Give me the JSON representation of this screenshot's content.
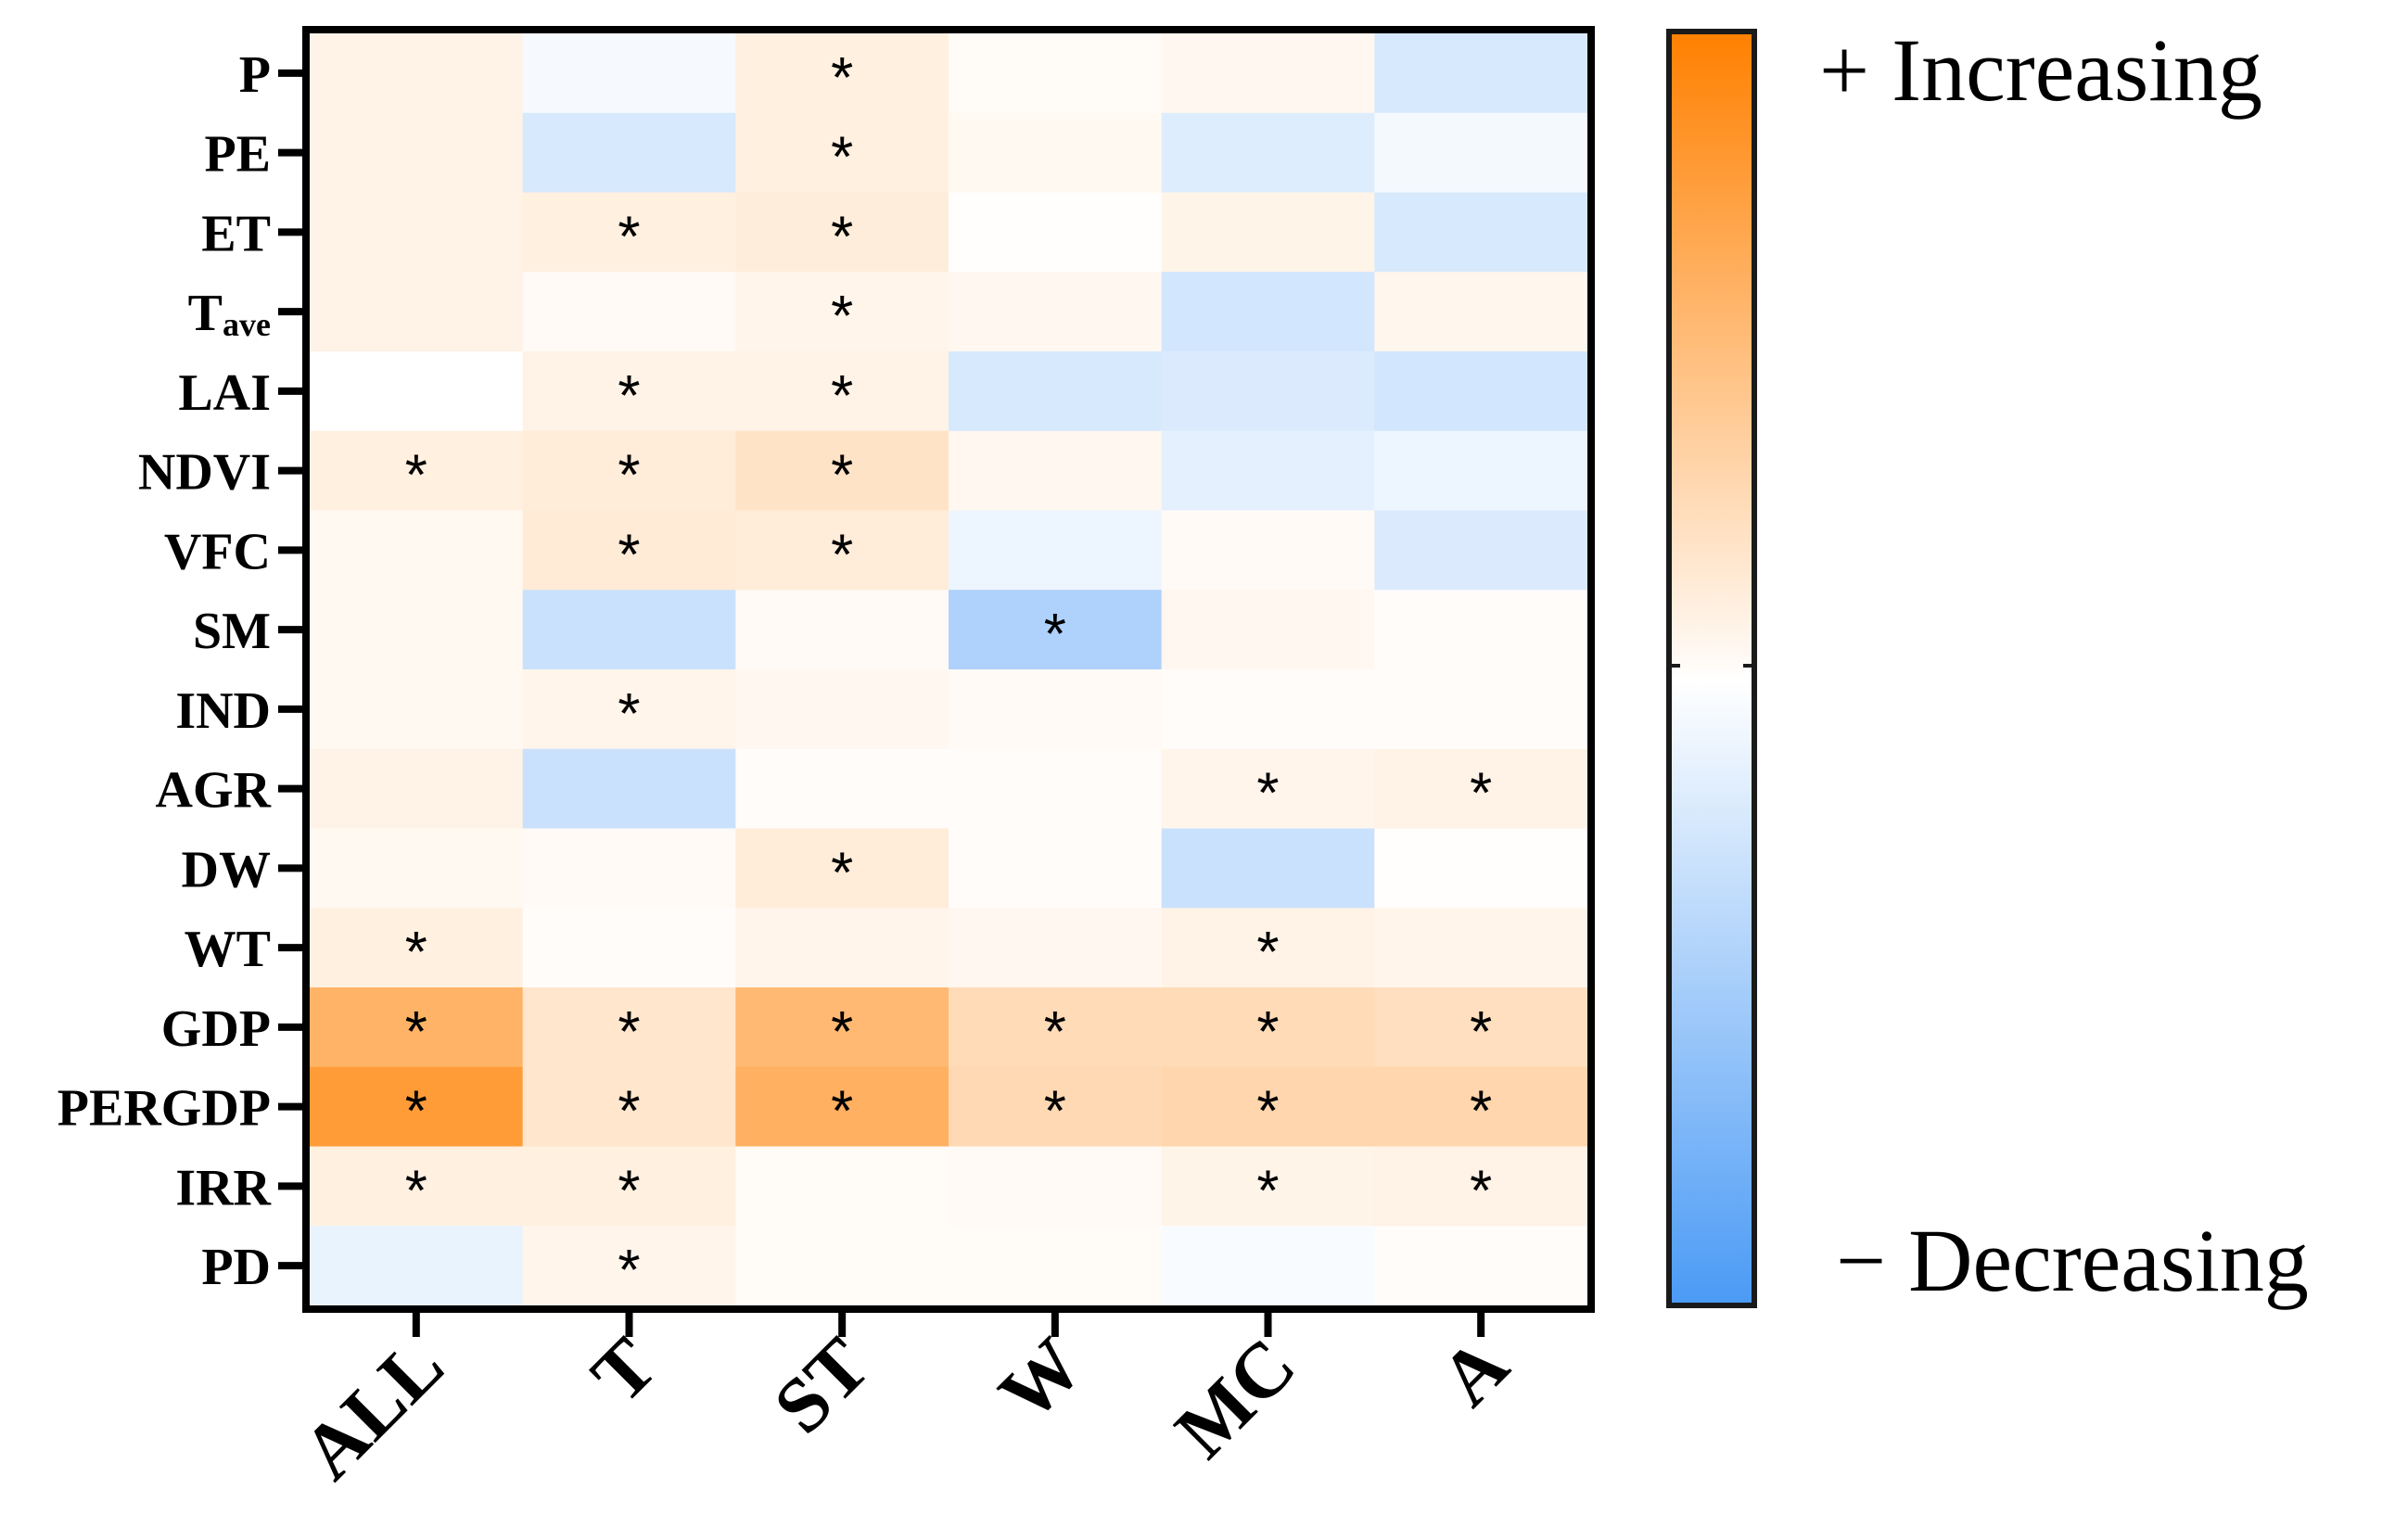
{
  "chart_data": {
    "type": "heatmap",
    "title": "",
    "columns": [
      "ALL",
      "T",
      "ST",
      "W",
      "MC",
      "A"
    ],
    "rows": [
      "P",
      "PE",
      "ET",
      "T_ave",
      "LAI",
      "NDVI",
      "VFC",
      "SM",
      "IND",
      "AGR",
      "DW",
      "WT",
      "GDP",
      "PERGDP",
      "IRR",
      "PD"
    ],
    "row_labels": [
      {
        "main": "P",
        "sub": ""
      },
      {
        "main": "PE",
        "sub": ""
      },
      {
        "main": "ET",
        "sub": ""
      },
      {
        "main": "T",
        "sub": "ave"
      },
      {
        "main": "LAI",
        "sub": ""
      },
      {
        "main": "NDVI",
        "sub": ""
      },
      {
        "main": "VFC",
        "sub": ""
      },
      {
        "main": "SM",
        "sub": ""
      },
      {
        "main": "IND",
        "sub": ""
      },
      {
        "main": "AGR",
        "sub": ""
      },
      {
        "main": "DW",
        "sub": ""
      },
      {
        "main": "WT",
        "sub": ""
      },
      {
        "main": "GDP",
        "sub": ""
      },
      {
        "main": "PERGDP",
        "sub": ""
      },
      {
        "main": "IRR",
        "sub": ""
      },
      {
        "main": "PD",
        "sub": ""
      }
    ],
    "values": [
      [
        0.1,
        -0.05,
        0.12,
        0.03,
        0.06,
        -0.22
      ],
      [
        0.1,
        -0.22,
        0.12,
        0.05,
        -0.18,
        -0.06
      ],
      [
        0.1,
        0.12,
        0.14,
        0.01,
        0.09,
        -0.22
      ],
      [
        0.1,
        0.04,
        0.08,
        0.06,
        -0.25,
        0.07
      ],
      [
        0.0,
        0.1,
        0.1,
        -0.22,
        -0.2,
        -0.25
      ],
      [
        0.12,
        0.15,
        0.22,
        0.06,
        -0.15,
        -0.1
      ],
      [
        0.05,
        0.16,
        0.15,
        -0.1,
        0.04,
        -0.2
      ],
      [
        0.05,
        -0.3,
        0.04,
        -0.45,
        0.06,
        0.02
      ],
      [
        0.05,
        0.08,
        0.06,
        0.04,
        0.02,
        0.02
      ],
      [
        0.1,
        -0.3,
        0.02,
        0.02,
        0.08,
        0.1
      ],
      [
        0.05,
        0.04,
        0.15,
        0.02,
        -0.3,
        0.01
      ],
      [
        0.12,
        0.02,
        0.08,
        0.06,
        0.1,
        0.08
      ],
      [
        0.6,
        0.2,
        0.55,
        0.28,
        0.28,
        0.25
      ],
      [
        0.78,
        0.2,
        0.62,
        0.3,
        0.32,
        0.32
      ],
      [
        0.12,
        0.12,
        0.03,
        0.04,
        0.09,
        0.1
      ],
      [
        -0.12,
        0.08,
        0.03,
        0.03,
        -0.04,
        0.02
      ]
    ],
    "significant": [
      [
        0,
        0,
        1,
        0,
        0,
        0
      ],
      [
        0,
        0,
        1,
        0,
        0,
        0
      ],
      [
        0,
        1,
        1,
        0,
        0,
        0
      ],
      [
        0,
        0,
        1,
        0,
        0,
        0
      ],
      [
        0,
        1,
        1,
        0,
        0,
        0
      ],
      [
        1,
        1,
        1,
        0,
        0,
        0
      ],
      [
        0,
        1,
        1,
        0,
        0,
        0
      ],
      [
        0,
        0,
        0,
        1,
        0,
        0
      ],
      [
        0,
        1,
        0,
        0,
        0,
        0
      ],
      [
        0,
        0,
        0,
        0,
        1,
        1
      ],
      [
        0,
        0,
        1,
        0,
        0,
        0
      ],
      [
        1,
        0,
        0,
        0,
        1,
        0
      ],
      [
        1,
        1,
        1,
        1,
        1,
        1
      ],
      [
        1,
        1,
        1,
        1,
        1,
        1
      ],
      [
        1,
        1,
        0,
        0,
        1,
        1
      ],
      [
        0,
        1,
        0,
        0,
        0,
        0
      ]
    ],
    "significance_marker": "*",
    "value_range": [
      -1,
      1
    ],
    "colorscale": {
      "negative": "#4a9af5",
      "neutral": "#ffffff",
      "positive": "#ff8000"
    },
    "legend": {
      "position": "right",
      "high_label": "+ Increasing",
      "low_label": "− Decreasing"
    }
  }
}
